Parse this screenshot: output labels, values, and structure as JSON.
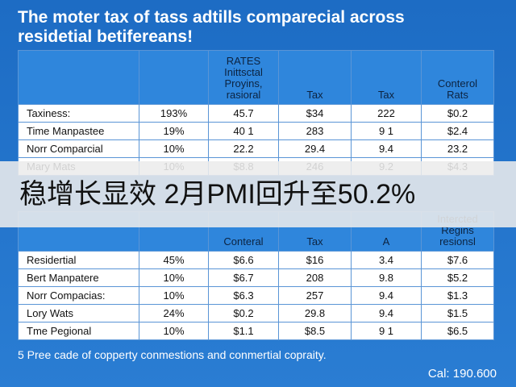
{
  "title": "The moter tax of tass adtills comparecial across\nresidetial betifereans!",
  "tables": [
    {
      "header": [
        "RATES\nInittsctal\nProyins,\nrasioral",
        "Tax",
        "Tax",
        "Conterol\nRats"
      ],
      "rows": [
        [
          "Taxiness:",
          "193%",
          "45.7",
          "$34",
          "222",
          "$0.2"
        ],
        [
          "Time Manpastee",
          "19%",
          "40 1",
          "283",
          "9 1",
          "$2.4"
        ],
        [
          "Norr Comparcial",
          "10%",
          "22.2",
          "29.4",
          "9.4",
          "23.2"
        ],
        [
          "Mary Mats",
          "10%",
          "$8.8",
          "246",
          "9.2",
          "$4.3"
        ]
      ]
    },
    {
      "header": [
        "Conteral",
        "Tax",
        "A",
        "Intercted\nRegins\nresionsl"
      ],
      "rows": [
        [
          "Residertial",
          "45%",
          "$6.6",
          "$16",
          "3.4",
          "$7.6"
        ],
        [
          "Bert Manpatere",
          "10%",
          "$6.7",
          "208",
          "9.8",
          "$5.2"
        ],
        [
          "Norr Compacias:",
          "10%",
          "$6.3",
          "257",
          "9.4",
          "$1.3"
        ],
        [
          "Lory Wats",
          "24%",
          "$0.2",
          "29.8",
          "9.4",
          "$1.5"
        ],
        [
          "Tme Pegional",
          "10%",
          "$1.1",
          "$8.5",
          "9 1",
          "$6.5"
        ]
      ]
    }
  ],
  "banner": "稳增长显效 2月PMI回升至50.2%",
  "footnote": "5 Pree cade of copperty conmestions and conmertial copraity.",
  "footer_right": "Cal: 190.600"
}
